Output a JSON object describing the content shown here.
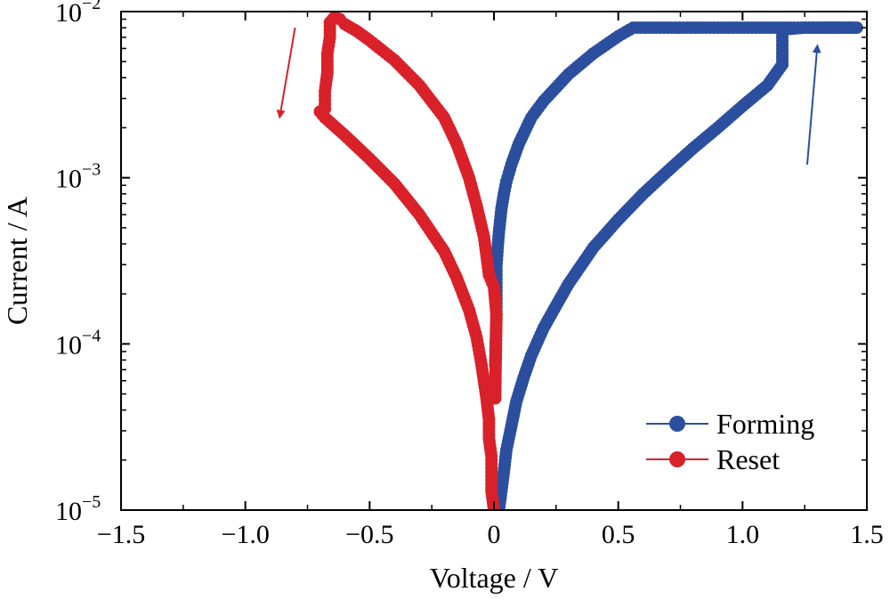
{
  "chart_data": {
    "type": "scatter",
    "xlabel": "Voltage / V",
    "ylabel": "Current / A",
    "xlim": [
      -1.5,
      1.5
    ],
    "ylim": [
      1e-05,
      0.01
    ],
    "y_scale": "log",
    "grid": false,
    "legend_position": "bottom-right",
    "x_ticks": [
      {
        "value": -1.5,
        "label": "−1.5"
      },
      {
        "value": -1.0,
        "label": "−1.0"
      },
      {
        "value": -0.5,
        "label": "−0.5"
      },
      {
        "value": 0.0,
        "label": "0"
      },
      {
        "value": 0.5,
        "label": "0.5"
      },
      {
        "value": 1.0,
        "label": "1.0"
      },
      {
        "value": 1.5,
        "label": "1.5"
      }
    ],
    "y_ticks": [
      {
        "value": 1e-05,
        "base": "10",
        "exp": "−5"
      },
      {
        "value": 0.0001,
        "base": "10",
        "exp": "−4"
      },
      {
        "value": 0.001,
        "base": "10",
        "exp": "−3"
      },
      {
        "value": 0.01,
        "base": "10",
        "exp": "−2"
      }
    ],
    "series": [
      {
        "name": "Forming",
        "color": "#2b4f9e",
        "points": [
          [
            0.02,
            1e-05
          ],
          [
            0.03,
            1.3e-05
          ],
          [
            0.04,
            1.7e-05
          ],
          [
            0.05,
            2.3e-05
          ],
          [
            0.07,
            3.2e-05
          ],
          [
            0.09,
            4.5e-05
          ],
          [
            0.12,
            6.3e-05
          ],
          [
            0.15,
            8.5e-05
          ],
          [
            0.2,
            0.000125
          ],
          [
            0.25,
            0.00017
          ],
          [
            0.3,
            0.00023
          ],
          [
            0.4,
            0.00038
          ],
          [
            0.5,
            0.00056
          ],
          [
            0.6,
            0.0008
          ],
          [
            0.7,
            0.0011
          ],
          [
            0.8,
            0.0015
          ],
          [
            0.9,
            0.002
          ],
          [
            1.0,
            0.0027
          ],
          [
            1.1,
            0.0036
          ],
          [
            1.16,
            0.0048
          ],
          [
            1.16,
            0.0078
          ],
          [
            1.25,
            0.008
          ],
          [
            1.35,
            0.008
          ],
          [
            1.46,
            0.008
          ],
          [
            1.3,
            0.008
          ],
          [
            1.1,
            0.008
          ],
          [
            0.9,
            0.008
          ],
          [
            0.7,
            0.008
          ],
          [
            0.56,
            0.008
          ],
          [
            0.5,
            0.0071
          ],
          [
            0.4,
            0.0056
          ],
          [
            0.3,
            0.0042
          ],
          [
            0.2,
            0.0029
          ],
          [
            0.15,
            0.0023
          ],
          [
            0.1,
            0.0016
          ],
          [
            0.07,
            0.0012
          ],
          [
            0.05,
            0.00095
          ],
          [
            0.04,
            0.0008
          ],
          [
            0.03,
            0.00065
          ],
          [
            0.02,
            0.00047
          ],
          [
            0.015,
            0.00038
          ],
          [
            0.01,
            0.00029
          ],
          [
            0.01,
            0.00022
          ],
          [
            0.01,
            0.00015
          ],
          [
            0.005,
            7.5e-05
          ]
        ]
      },
      {
        "name": "Reset",
        "color": "#d9212a",
        "points": [
          [
            0.0,
            1e-05
          ],
          [
            -0.01,
            1.3e-05
          ],
          [
            -0.01,
            1.6e-05
          ],
          [
            -0.01,
            2.1e-05
          ],
          [
            -0.02,
            2.7e-05
          ],
          [
            -0.02,
            3.5e-05
          ],
          [
            -0.03,
            4.7e-05
          ],
          [
            -0.05,
            7.5e-05
          ],
          [
            -0.07,
            0.00011
          ],
          [
            -0.1,
            0.00016
          ],
          [
            -0.15,
            0.00025
          ],
          [
            -0.2,
            0.00036
          ],
          [
            -0.3,
            0.0006
          ],
          [
            -0.4,
            0.00092
          ],
          [
            -0.5,
            0.0013
          ],
          [
            -0.6,
            0.0018
          ],
          [
            -0.68,
            0.0023
          ],
          [
            -0.7,
            0.0025
          ],
          [
            -0.68,
            0.0026
          ],
          [
            -0.68,
            0.0033
          ],
          [
            -0.67,
            0.0043
          ],
          [
            -0.67,
            0.0056
          ],
          [
            -0.66,
            0.007
          ],
          [
            -0.66,
            0.0086
          ],
          [
            -0.64,
            0.0093
          ],
          [
            -0.62,
            0.009
          ],
          [
            -0.6,
            0.0084
          ],
          [
            -0.55,
            0.0076
          ],
          [
            -0.5,
            0.0067
          ],
          [
            -0.4,
            0.0051
          ],
          [
            -0.3,
            0.0036
          ],
          [
            -0.2,
            0.0023
          ],
          [
            -0.15,
            0.0016
          ],
          [
            -0.1,
            0.001
          ],
          [
            -0.07,
            0.00068
          ],
          [
            -0.04,
            0.00044
          ],
          [
            -0.03,
            0.00034
          ],
          [
            -0.02,
            0.00026
          ],
          [
            0.0,
            0.00022
          ],
          [
            0.01,
            0.00015
          ],
          [
            0.005,
            4.7e-05
          ]
        ]
      }
    ],
    "annotations": [
      {
        "name": "reset-direction-arrow",
        "color": "#d9212a",
        "from": [
          -0.8,
          0.008
        ],
        "to": [
          -0.86,
          0.0024
        ]
      },
      {
        "name": "forming-direction-arrow",
        "color": "#2b4f9e",
        "from": [
          1.26,
          0.0012
        ],
        "to": [
          1.3,
          0.006
        ]
      }
    ]
  }
}
